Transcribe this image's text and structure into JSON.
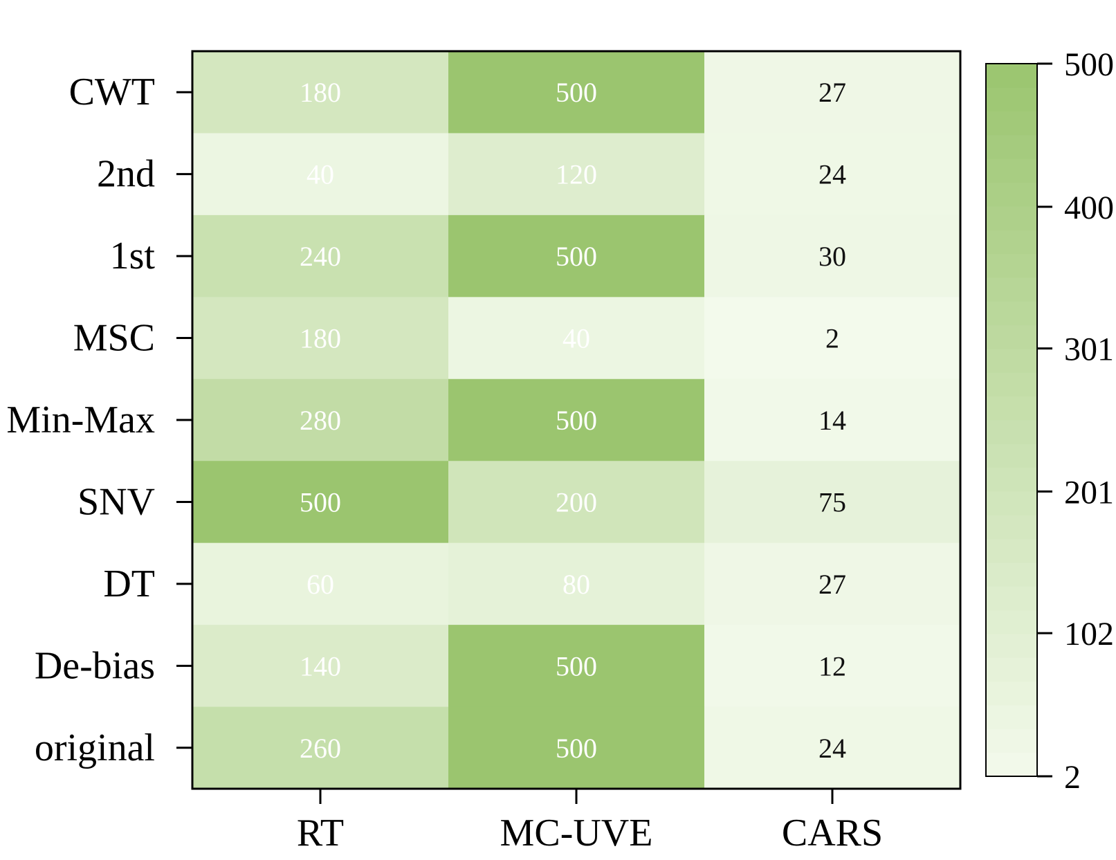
{
  "chart_data": {
    "type": "heatmap",
    "title": "",
    "xlabel": "",
    "ylabel": "",
    "x_categories": [
      "RT",
      "MC-UVE",
      "CARS"
    ],
    "y_categories": [
      "CWT",
      "2nd",
      "1st",
      "MSC",
      "Min-Max",
      "SNV",
      "DT",
      "De-bias",
      "original"
    ],
    "values": [
      [
        180,
        500,
        27
      ],
      [
        40,
        120,
        24
      ],
      [
        240,
        500,
        30
      ],
      [
        180,
        40,
        2
      ],
      [
        280,
        500,
        14
      ],
      [
        500,
        200,
        75
      ],
      [
        60,
        80,
        27
      ],
      [
        140,
        500,
        12
      ],
      [
        260,
        500,
        24
      ]
    ],
    "colorbar": {
      "min": 2,
      "max": 500,
      "ticks": [
        2,
        102,
        201,
        301,
        400,
        500
      ],
      "color_low": "#f3faec",
      "color_high": "#9bc56f"
    },
    "label_colors": {
      "light": "#ffffff",
      "dark": "#111111"
    },
    "grid": false,
    "legend": "colorbar-right"
  }
}
